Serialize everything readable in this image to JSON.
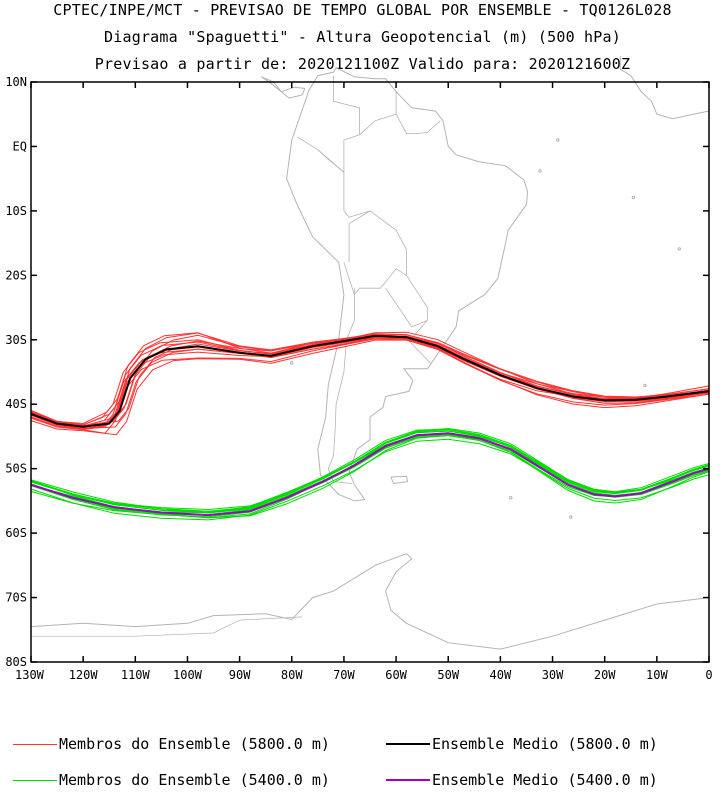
{
  "header": {
    "line1": "CPTEC/INPE/MCT - PREVISAO DE TEMPO GLOBAL POR ENSEMBLE - TQ0126L028",
    "line2": "Diagrama \"Spaguetti\" - Altura Geopotencial (m) (500 hPa)",
    "line3": "Previsao a partir de: 2020121100Z  Valido para: 2020121600Z"
  },
  "map": {
    "lat_labels": [
      "10N",
      "EQ",
      "10S",
      "20S",
      "30S",
      "40S",
      "50S",
      "60S",
      "70S",
      "80S"
    ],
    "lon_labels": [
      "130W",
      "120W",
      "110W",
      "100W",
      "90W",
      "80W",
      "70W",
      "60W",
      "50W",
      "40W",
      "30W",
      "20W",
      "10W",
      "0"
    ],
    "lat_range": [
      10,
      -80
    ],
    "lon_range": [
      -130,
      0
    ],
    "coastline_color": "#b4b4b4"
  },
  "chart_data": {
    "type": "line",
    "x_unit": "longitude (deg)",
    "y_unit": "latitude (deg)",
    "series": [
      {
        "name": "Ensemble Medio (5800.0 m)",
        "color": "#000000",
        "points": [
          [
            -130,
            -41.5
          ],
          [
            -125,
            -43
          ],
          [
            -120,
            -43.5
          ],
          [
            -115,
            -43
          ],
          [
            -113,
            -41
          ],
          [
            -111,
            -36
          ],
          [
            -108,
            -33
          ],
          [
            -104,
            -31.5
          ],
          [
            -98,
            -31
          ],
          [
            -90,
            -32
          ],
          [
            -84,
            -32.5
          ],
          [
            -76,
            -31
          ],
          [
            -70,
            -30.2
          ],
          [
            -64,
            -29.4
          ],
          [
            -58,
            -29.6
          ],
          [
            -52,
            -31
          ],
          [
            -47,
            -33
          ],
          [
            -40,
            -35.5
          ],
          [
            -33,
            -37.5
          ],
          [
            -26,
            -38.8
          ],
          [
            -20,
            -39.4
          ],
          [
            -14,
            -39.3
          ],
          [
            -8,
            -38.8
          ],
          [
            0,
            -38
          ]
        ]
      },
      {
        "name": "Ensemble Medio (5400.0 m)",
        "color": "#a000c8",
        "points": [
          [
            -130,
            -52.5
          ],
          [
            -122,
            -54.5
          ],
          [
            -114,
            -56
          ],
          [
            -105,
            -56.8
          ],
          [
            -96,
            -57.2
          ],
          [
            -88,
            -56.6
          ],
          [
            -81,
            -54.5
          ],
          [
            -74,
            -52
          ],
          [
            -68,
            -49.5
          ],
          [
            -62,
            -46.5
          ],
          [
            -56,
            -44.8
          ],
          [
            -50,
            -44.5
          ],
          [
            -44,
            -45.3
          ],
          [
            -38,
            -47
          ],
          [
            -32,
            -50
          ],
          [
            -27,
            -52.5
          ],
          [
            -22,
            -54
          ],
          [
            -18,
            -54.3
          ],
          [
            -13,
            -53.8
          ],
          [
            -7,
            -52
          ],
          [
            -3,
            -50.7
          ],
          [
            0,
            -50
          ]
        ]
      }
    ],
    "ensemble_members": [
      {
        "name": "Membros do Ensemble (5800.0 m)",
        "color": "#ff3232",
        "count": 14
      },
      {
        "name": "Membros do Ensemble (5400.0 m)",
        "color": "#00dc00",
        "count": 14
      }
    ]
  },
  "legend": {
    "items": [
      {
        "label": "Membros do Ensemble (5800.0 m)",
        "color": "#ff3232",
        "thick": false
      },
      {
        "label": "Ensemble Medio (5800.0 m)",
        "color": "#000000",
        "thick": true
      },
      {
        "label": "Membros do Ensemble (5400.0 m)",
        "color": "#00dc00",
        "thick": false
      },
      {
        "label": "Ensemble Medio (5400.0 m)",
        "color": "#a000c8",
        "thick": true
      }
    ]
  }
}
